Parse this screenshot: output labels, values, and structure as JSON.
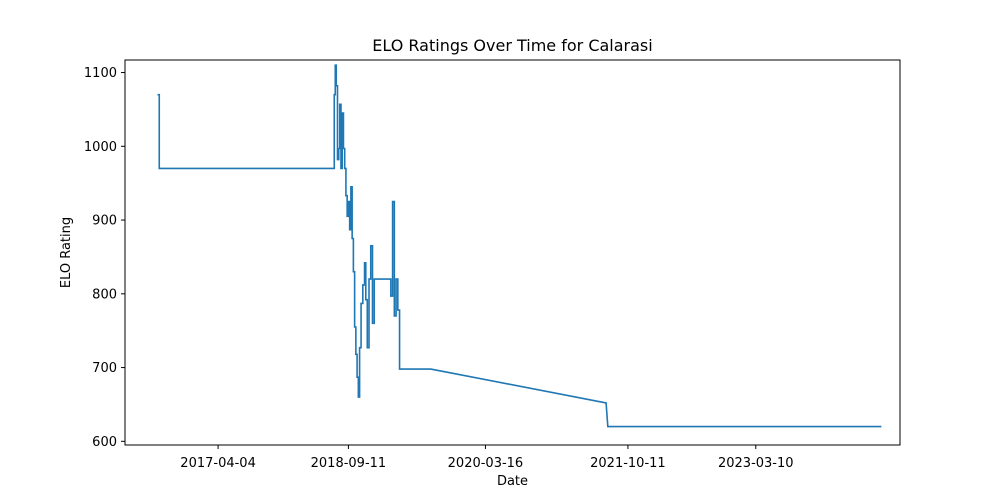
{
  "chart_data": {
    "type": "line",
    "title": "ELO Ratings Over Time for Calarasi",
    "xlabel": "Date",
    "ylabel": "ELO Rating",
    "grid": false,
    "legend": "none",
    "line_color": "#1f77b4",
    "xlim": [
      "2016-03-25",
      "2024-10-11"
    ],
    "ylim": [
      595,
      1117
    ],
    "x_ticks": [
      "2017-04-04",
      "2018-09-11",
      "2020-03-16",
      "2021-10-11",
      "2023-03-10"
    ],
    "y_ticks": [
      600,
      700,
      800,
      900,
      1000,
      1100
    ],
    "series": [
      {
        "x": [
          "2016-08-03",
          "2016-08-10",
          "2016-08-10",
          "2018-07-16",
          "2018-07-16",
          "2018-07-20",
          "2018-07-20",
          "2018-07-24",
          "2018-07-24",
          "2018-07-29",
          "2018-07-29",
          "2018-08-03",
          "2018-08-03",
          "2018-08-07",
          "2018-08-07",
          "2018-08-12",
          "2018-08-12",
          "2018-08-17",
          "2018-08-17",
          "2018-08-22",
          "2018-08-22",
          "2018-08-27",
          "2018-08-27",
          "2018-09-01",
          "2018-09-01",
          "2018-09-06",
          "2018-09-06",
          "2018-09-11",
          "2018-09-11",
          "2018-09-16",
          "2018-09-16",
          "2018-09-21",
          "2018-09-21",
          "2018-09-26",
          "2018-09-26",
          "2018-10-01",
          "2018-10-01",
          "2018-10-06",
          "2018-10-06",
          "2018-10-11",
          "2018-10-11",
          "2018-10-16",
          "2018-10-16",
          "2018-10-21",
          "2018-10-21",
          "2018-10-26",
          "2018-10-26",
          "2018-11-01",
          "2018-11-01",
          "2018-11-08",
          "2018-11-08",
          "2018-11-15",
          "2018-11-15",
          "2018-11-20",
          "2018-11-20",
          "2018-11-26",
          "2018-11-26",
          "2018-12-03",
          "2018-12-03",
          "2018-12-10",
          "2018-12-10",
          "2018-12-17",
          "2018-12-17",
          "2018-12-24",
          "2018-12-24",
          "2019-03-01",
          "2019-03-01",
          "2019-03-08",
          "2019-03-08",
          "2019-03-15",
          "2019-03-15",
          "2019-03-22",
          "2019-03-22",
          "2019-03-29",
          "2019-03-29",
          "2019-04-05",
          "2019-04-05",
          "2019-04-12",
          "2019-04-12",
          "2019-04-19",
          "2019-04-19",
          "2019-05-10",
          "2019-05-10",
          "2019-05-17",
          "2019-05-17",
          "2019-05-24",
          "2019-05-24",
          "2019-05-31",
          "2019-05-31",
          "2019-06-07",
          "2019-06-07",
          "2019-06-14",
          "2019-06-14",
          "2019-06-21",
          "2019-06-21",
          "2019-06-28",
          "2019-06-28",
          "2019-07-05",
          "2019-07-05",
          "2019-07-12",
          "2019-07-12",
          "2019-07-19",
          "2019-07-19",
          "2019-07-26",
          "2019-07-26",
          "2019-08-02",
          "2019-08-02",
          "2019-08-09",
          "2019-08-09",
          "2021-07-15",
          "2021-07-15",
          "2021-07-22",
          "2021-07-22",
          "2024-07-28"
        ],
        "y": [
          1070,
          1070,
          970,
          970,
          1070,
          1070,
          1110,
          1110,
          1082,
          1082,
          982,
          982,
          997,
          997,
          1057,
          1057,
          970,
          970,
          1045,
          1045,
          997,
          997,
          970,
          970,
          933,
          933,
          905,
          905,
          925,
          925,
          887,
          887,
          945,
          945,
          875,
          875,
          830,
          830,
          755,
          755,
          718,
          718,
          687,
          687,
          660,
          660,
          727,
          727,
          787,
          787,
          812,
          812,
          842,
          842,
          792,
          792,
          727,
          727,
          820,
          820,
          865,
          865,
          760,
          760,
          820,
          820,
          797,
          797,
          925,
          925,
          770,
          770,
          820,
          820,
          778,
          778,
          698,
          698,
          698,
          698,
          698,
          698,
          698,
          698,
          698,
          698,
          698,
          698,
          698,
          698,
          698,
          698,
          698,
          698,
          698,
          698,
          698,
          698,
          698,
          698,
          698,
          698,
          698,
          698,
          698,
          698,
          698,
          698,
          698,
          652,
          652,
          620,
          620,
          620
        ]
      }
    ]
  }
}
